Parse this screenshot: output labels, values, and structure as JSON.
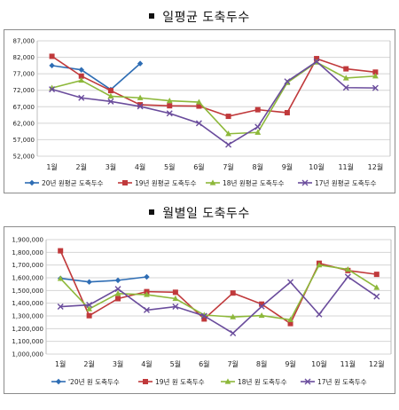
{
  "chart_data": [
    {
      "type": "line",
      "title": "일평균 도축두수",
      "categories": [
        "1월",
        "2월",
        "3월",
        "4월",
        "5월",
        "6월",
        "7월",
        "8월",
        "9월",
        "10월",
        "11월",
        "12월"
      ],
      "ylim": [
        52000,
        87000
      ],
      "yticks": [
        "52,000",
        "57,000",
        "62,000",
        "67,000",
        "72,000",
        "77,000",
        "82,000",
        "87,000"
      ],
      "ytick_values": [
        52000,
        57000,
        62000,
        67000,
        72000,
        77000,
        82000,
        87000
      ],
      "grid": "horizontal",
      "legend_position": "bottom",
      "series": [
        {
          "name": "20년 원평균 도축두수",
          "color": "#2E6DB4",
          "marker": "diamond",
          "values": [
            79500,
            78200,
            72200,
            80100,
            null,
            null,
            null,
            null,
            null,
            null,
            null,
            null
          ]
        },
        {
          "name": "19년 원평균 도축두수",
          "color": "#C0393B",
          "marker": "square",
          "values": [
            82300,
            76300,
            71900,
            67600,
            67300,
            67200,
            64100,
            66100,
            65200,
            81600,
            78500,
            77500
          ]
        },
        {
          "name": "18년 원평균 도축두수",
          "color": "#8DB83A",
          "marker": "triangle",
          "values": [
            72700,
            75000,
            70200,
            69700,
            68800,
            68400,
            58800,
            59200,
            74300,
            80500,
            75700,
            76300
          ]
        },
        {
          "name": "17년 원평균 도축두수",
          "color": "#6A4C9C",
          "marker": "x",
          "values": [
            72300,
            69700,
            68600,
            67100,
            65000,
            62000,
            55500,
            60900,
            74700,
            80700,
            72800,
            72700
          ]
        }
      ]
    },
    {
      "type": "line",
      "title": "월별일 도축두수",
      "categories": [
        "1월",
        "2월",
        "3월",
        "4월",
        "5월",
        "6월",
        "7월",
        "8월",
        "9월",
        "10월",
        "11월",
        "12월"
      ],
      "ylim": [
        1000000,
        1900000
      ],
      "yticks": [
        "1,000,000",
        "1,100,000",
        "1,200,000",
        "1,300,000",
        "1,400,000",
        "1,500,000",
        "1,600,000",
        "1,700,000",
        "1,800,000",
        "1,900,000"
      ],
      "ytick_values": [
        1000000,
        1100000,
        1200000,
        1300000,
        1400000,
        1500000,
        1600000,
        1700000,
        1800000,
        1900000
      ],
      "grid": "horizontal",
      "legend_position": "bottom",
      "series": [
        {
          "name": "'20년 원 도축두수",
          "color": "#2E6DB4",
          "marker": "diamond",
          "values": [
            1595000,
            1567000,
            1580000,
            1607000,
            null,
            null,
            null,
            null,
            null,
            null,
            null,
            null
          ]
        },
        {
          "name": "19년 원 도축두수",
          "color": "#C0393B",
          "marker": "square",
          "values": [
            1812000,
            1302000,
            1436000,
            1491000,
            1486000,
            1276000,
            1480000,
            1393000,
            1240000,
            1714000,
            1657000,
            1627000
          ]
        },
        {
          "name": "18년 원 도축두수",
          "color": "#8DB83A",
          "marker": "triangle",
          "values": [
            1594000,
            1355000,
            1476000,
            1467000,
            1436000,
            1307000,
            1292000,
            1303000,
            1270000,
            1700000,
            1666000,
            1523000
          ]
        },
        {
          "name": "17년 원 도축두수",
          "color": "#6A4C9C",
          "marker": "x",
          "values": [
            1373000,
            1387000,
            1512000,
            1346000,
            1373000,
            1300000,
            1164000,
            1375000,
            1566000,
            1312000,
            1608000,
            1453000
          ]
        }
      ]
    }
  ]
}
